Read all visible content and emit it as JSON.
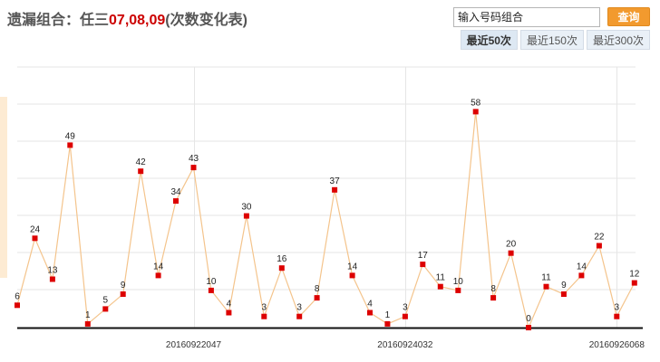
{
  "header": {
    "title_prefix": "遗漏组合：任三",
    "title_numbers": "07,08,09",
    "title_suffix": "(次数变化表)"
  },
  "search": {
    "placeholder": "输入号码组合",
    "button_label": "查询"
  },
  "range_tabs": [
    {
      "label": "最近50次",
      "active": true
    },
    {
      "label": "最近150次",
      "active": false
    },
    {
      "label": "最近300次",
      "active": false
    }
  ],
  "colors": {
    "line": "#f4c48c",
    "point": "#dd0000",
    "grid": "#e6e6e6",
    "axis": "#111111",
    "accent": "#f29a2e",
    "title_highlight": "#cc0000"
  },
  "chart_data": {
    "type": "line",
    "ylim": [
      0,
      70
    ],
    "grid": true,
    "x_tick_labels": [
      "20160922047",
      "20160924032",
      "20160926068"
    ],
    "series": [
      {
        "values": [
          6,
          24,
          13,
          49,
          1,
          5,
          9,
          42,
          14,
          34,
          43,
          10,
          4,
          30,
          3,
          16,
          3,
          8,
          37,
          14,
          4,
          1,
          3,
          17,
          11,
          10,
          58,
          8,
          20,
          0,
          11,
          9,
          14,
          22,
          3,
          12
        ]
      }
    ]
  }
}
